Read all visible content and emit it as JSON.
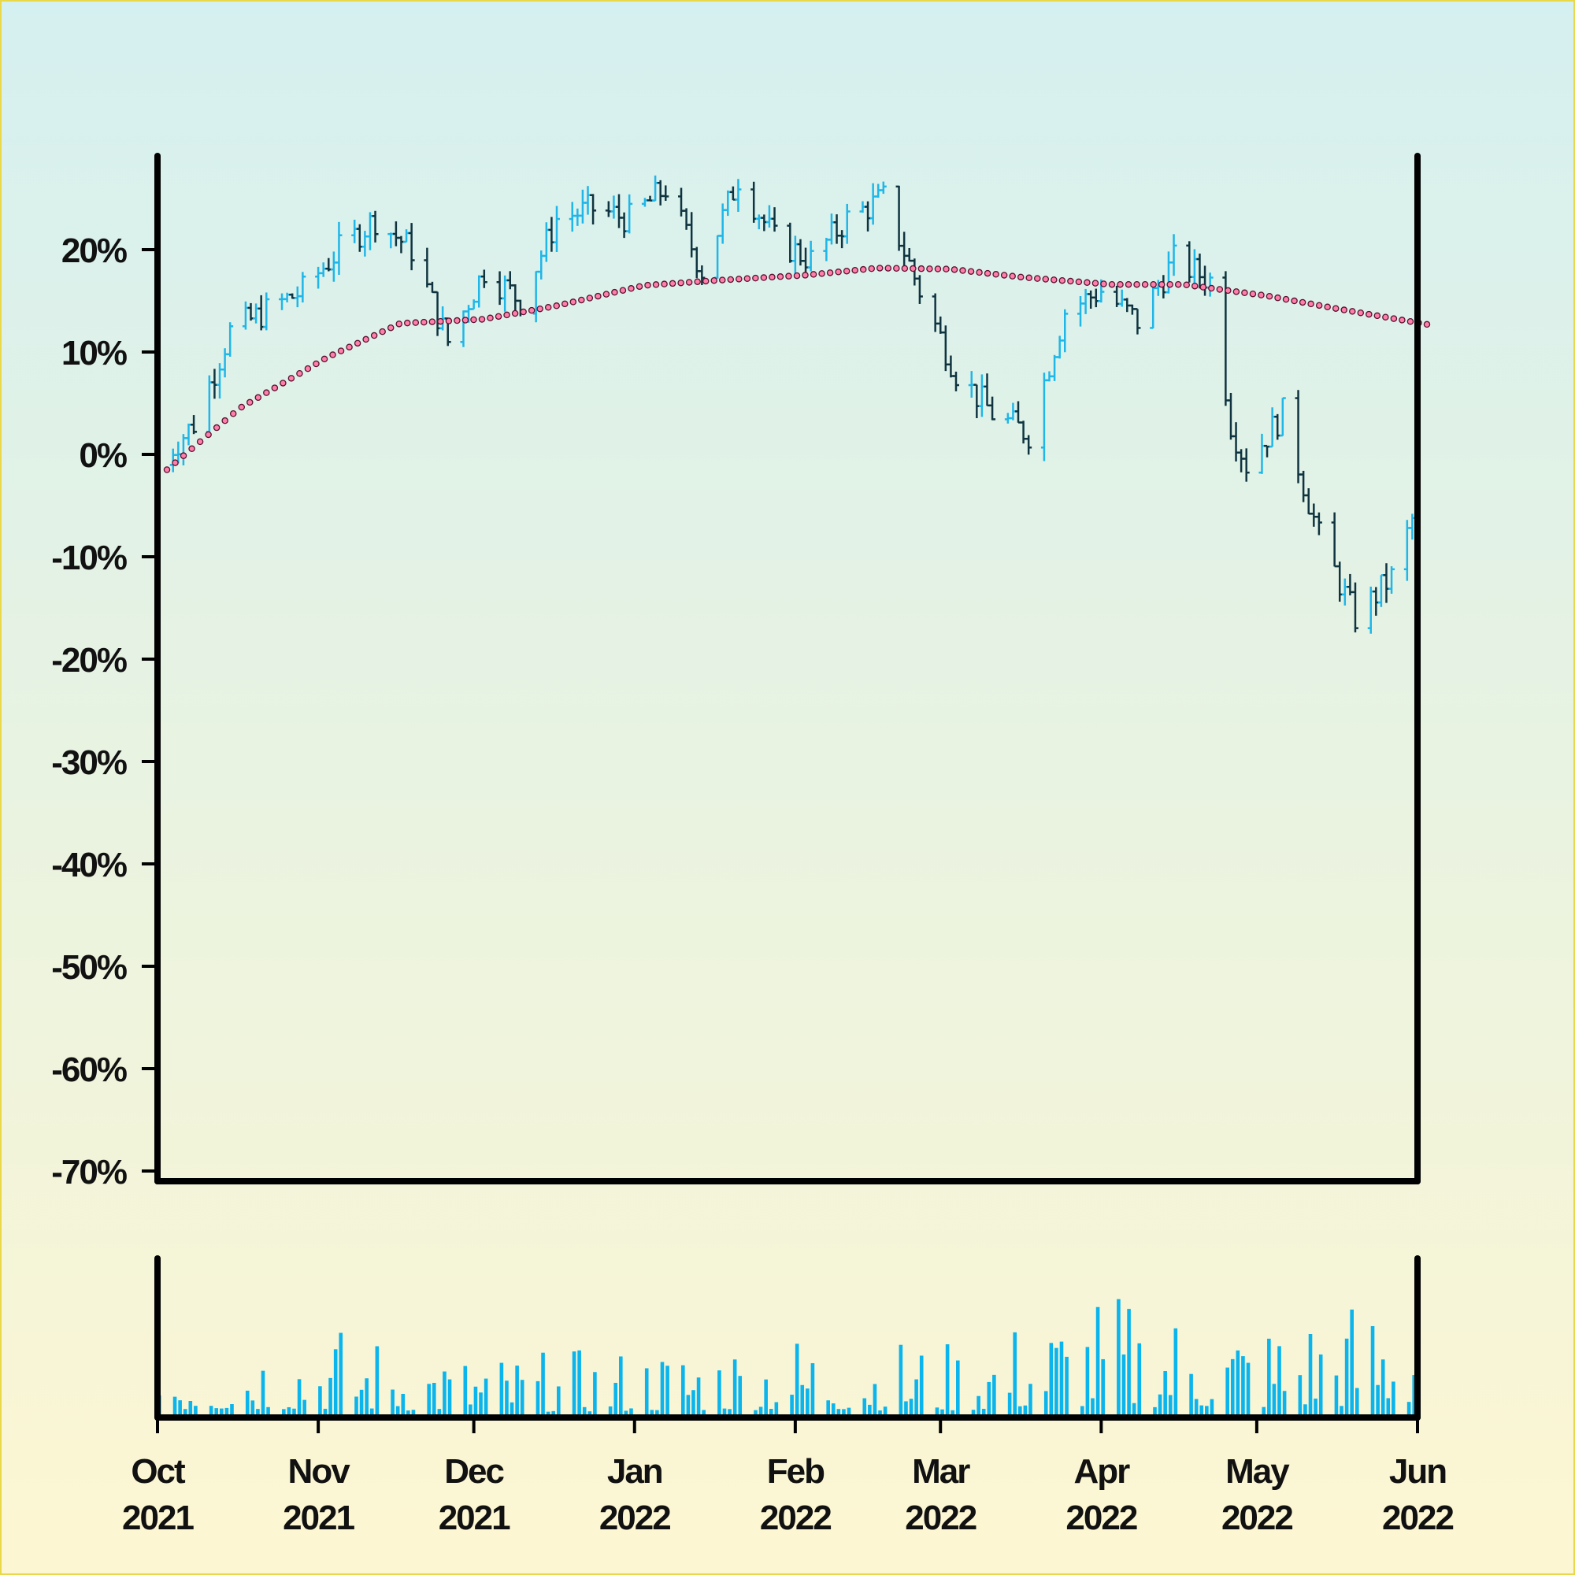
{
  "chart_data": {
    "type": "ohlc",
    "title": "",
    "xlabel": "",
    "ylabel": "",
    "x_range": [
      "2021-10-01",
      "2022-06-01"
    ],
    "ylim_percent": [
      -70,
      29
    ],
    "y_ticks": [
      "20%",
      "10%",
      "0%",
      "-10%",
      "-20%",
      "-30%",
      "-40%",
      "-50%",
      "-60%",
      "-70%"
    ],
    "x_ticks": [
      {
        "month": "Oct",
        "year": "2021",
        "date": "2021-10-01"
      },
      {
        "month": "Nov",
        "year": "2021",
        "date": "2021-11-01"
      },
      {
        "month": "Dec",
        "year": "2021",
        "date": "2021-12-01"
      },
      {
        "month": "Jan",
        "year": "2022",
        "date": "2022-01-01"
      },
      {
        "month": "Feb",
        "year": "2022",
        "date": "2022-02-01"
      },
      {
        "month": "Mar",
        "year": "2022",
        "date": "2022-03-01"
      },
      {
        "month": "Apr",
        "year": "2022",
        "date": "2022-04-01"
      },
      {
        "month": "May",
        "year": "2022",
        "date": "2022-05-01"
      },
      {
        "month": "Jun",
        "year": "2022",
        "date": "2022-06-01"
      }
    ],
    "close_path": [
      [
        "2021-10-01",
        -1
      ],
      [
        "2021-10-08",
        3
      ],
      [
        "2021-10-15",
        12
      ],
      [
        "2021-10-22",
        14
      ],
      [
        "2021-10-29",
        16
      ],
      [
        "2021-11-05",
        20
      ],
      [
        "2021-11-12",
        23
      ],
      [
        "2021-11-19",
        20
      ],
      [
        "2021-11-26",
        11
      ],
      [
        "2021-12-03",
        18
      ],
      [
        "2021-12-10",
        15
      ],
      [
        "2021-12-17",
        23
      ],
      [
        "2021-12-24",
        24
      ],
      [
        "2021-12-31",
        23
      ],
      [
        "2022-01-07",
        26
      ],
      [
        "2022-01-14",
        18
      ],
      [
        "2022-01-21",
        27
      ],
      [
        "2022-01-28",
        21
      ],
      [
        "2022-02-04",
        19
      ],
      [
        "2022-02-11",
        23
      ],
      [
        "2022-02-18",
        25
      ],
      [
        "2022-02-25",
        16
      ],
      [
        "2022-03-04",
        8
      ],
      [
        "2022-03-11",
        4
      ],
      [
        "2022-03-18",
        2
      ],
      [
        "2022-03-25",
        14
      ],
      [
        "2022-04-01",
        16
      ],
      [
        "2022-04-08",
        13
      ],
      [
        "2022-04-15",
        19
      ],
      [
        "2022-04-22",
        17
      ],
      [
        "2022-04-26",
        3
      ],
      [
        "2022-04-29",
        -1
      ],
      [
        "2022-05-06",
        4
      ],
      [
        "2022-05-13",
        -8
      ],
      [
        "2022-05-20",
        -16
      ],
      [
        "2022-05-27",
        -12
      ],
      [
        "2022-06-01",
        -5
      ],
      [
        "2022-06-08",
        -13
      ]
    ],
    "moving_average": [
      [
        "2021-10-01",
        -1.5
      ],
      [
        "2021-10-15",
        4.5
      ],
      [
        "2021-11-01",
        9.5
      ],
      [
        "2021-11-15",
        12.8
      ],
      [
        "2021-12-01",
        13.2
      ],
      [
        "2021-12-15",
        14.5
      ],
      [
        "2022-01-01",
        16.5
      ],
      [
        "2022-01-15",
        17.0
      ],
      [
        "2022-02-01",
        17.5
      ],
      [
        "2022-02-15",
        18.2
      ],
      [
        "2022-03-01",
        18.1
      ],
      [
        "2022-03-15",
        17.3
      ],
      [
        "2022-04-01",
        16.6
      ],
      [
        "2022-04-15",
        16.6
      ],
      [
        "2022-05-01",
        15.5
      ],
      [
        "2022-05-15",
        14.2
      ],
      [
        "2022-06-01",
        12.7
      ]
    ],
    "volume": {
      "x_range": [
        "2021-10-01",
        "2022-06-01"
      ],
      "level_avg": [
        0.3,
        0.38,
        0.25,
        0.28,
        0.35,
        0.3,
        0.5,
        0.4,
        0.55
      ],
      "max_relative": 1.0
    },
    "colors": {
      "up": "#1fb6e8",
      "down": "#0f3440",
      "volume": "#0ab4ec",
      "moving_average_fill": "#ff7faa",
      "moving_average_stroke": "#5a1030",
      "axis": "#000000",
      "background_top": "#d5f0f0",
      "background_bottom": "#fdf6d2",
      "border": "#e8d84a"
    }
  }
}
